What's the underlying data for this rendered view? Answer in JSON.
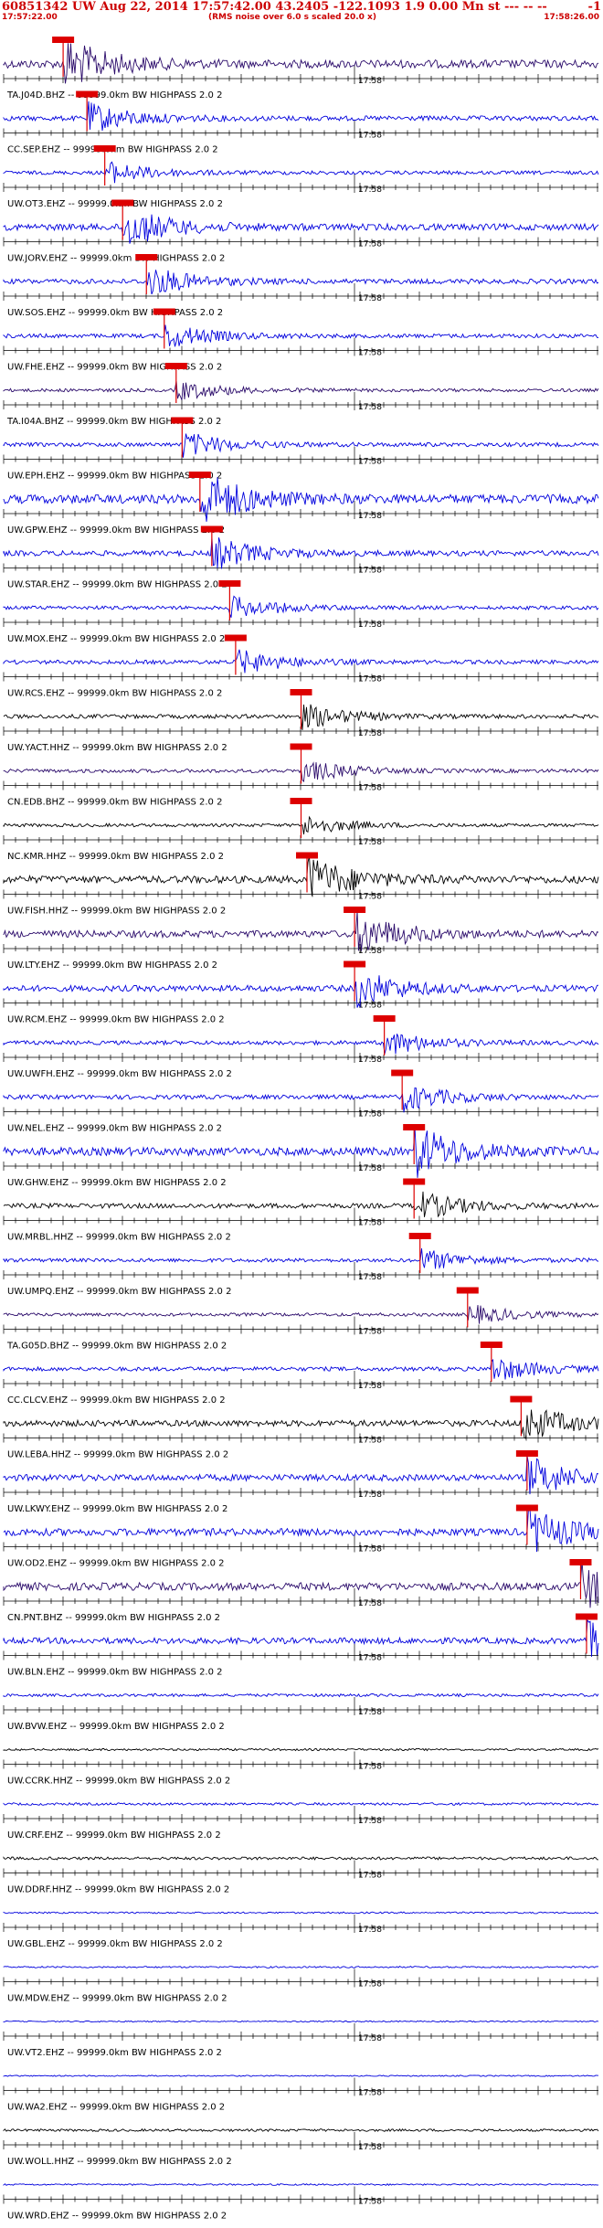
{
  "header": {
    "title": "60851342 UW Aug 22, 2014 17:57:42.00   43.2405 -122.1093  1.9 0.00 Mn st --- -- --",
    "title_right": "-1",
    "start_time": "17:57:22.00",
    "note": "(RMS noise over 6.0 s scaled 20.0 x)",
    "end_time": "17:58:26.00"
  },
  "colors": {
    "title": "#cc0000",
    "blue": "#0000dd",
    "black": "#000000",
    "purple": "#2a0a6a",
    "pick": "#dd0000"
  },
  "chart_data": {
    "type": "line",
    "title": "60851342 UW Aug 22, 2014 17:57:42.00",
    "x_range": [
      "17:57:22.00",
      "17:58:26.00"
    ],
    "minute_mark_label": "17:58",
    "traces": [
      {
        "label": "TA.J04D.BHZ -- 99999.0km BW  HIGHPASS  2.0  2",
        "color": "purple",
        "pick": 0.1,
        "amp": 2.0
      },
      {
        "label": "CC.SEP.EHZ -- 99999.0km BW  HIGHPASS  2.0  2",
        "color": "blue",
        "pick": 0.14,
        "amp": 1.2
      },
      {
        "label": "UW.OT3.EHZ -- 99999.0km BW  HIGHPASS  2.0  2",
        "color": "blue",
        "pick": 0.17,
        "amp": 0.9
      },
      {
        "label": "UW.JORV.EHZ -- 99999.0km BW  HIGHPASS  2.0  2",
        "color": "blue",
        "pick": 0.2,
        "amp": 1.6
      },
      {
        "label": "UW.SOS.EHZ -- 99999.0km BW  HIGHPASS  2.0  2",
        "color": "blue",
        "pick": 0.24,
        "amp": 1.2
      },
      {
        "label": "UW.FHE.EHZ -- 99999.0km BW  HIGHPASS  2.0  2",
        "color": "blue",
        "pick": 0.27,
        "amp": 1.0
      },
      {
        "label": "TA.I04A.BHZ -- 99999.0km BW  HIGHPASS  2.0  2",
        "color": "purple",
        "pick": 0.29,
        "amp": 0.8
      },
      {
        "label": "UW.EPH.EHZ -- 99999.0km BW  HIGHPASS  2.0  2",
        "color": "blue",
        "pick": 0.3,
        "amp": 1.0
      },
      {
        "label": "UW.GPW.EHZ -- 99999.0km BW  HIGHPASS  2.0  2",
        "color": "blue",
        "pick": 0.33,
        "amp": 2.2
      },
      {
        "label": "UW.STAR.EHZ -- 99999.0km BW  HIGHPASS  2.0  2",
        "color": "blue",
        "pick": 0.35,
        "amp": 1.3
      },
      {
        "label": "UW.MOX.EHZ -- 99999.0km BW  HIGHPASS  2.0  2",
        "color": "blue",
        "pick": 0.38,
        "amp": 0.9
      },
      {
        "label": "UW.RCS.EHZ -- 99999.0km BW  HIGHPASS  2.0  2",
        "color": "blue",
        "pick": 0.39,
        "amp": 1.0
      },
      {
        "label": "UW.YACT.HHZ -- 99999.0km BW  HIGHPASS  2.0  2",
        "color": "black",
        "pick": 0.5,
        "amp": 1.0
      },
      {
        "label": "CN.EDB.BHZ -- 99999.0km BW  HIGHPASS  2.0  2",
        "color": "purple",
        "pick": 0.5,
        "amp": 0.9
      },
      {
        "label": "NC.KMR.HHZ -- 99999.0km BW  HIGHPASS  2.0  2",
        "color": "black",
        "pick": 0.5,
        "amp": 0.8
      },
      {
        "label": "UW.FISH.HHZ -- 99999.0km BW  HIGHPASS  2.0  2",
        "color": "black",
        "pick": 0.51,
        "amp": 1.8
      },
      {
        "label": "UW.LTY.EHZ -- 99999.0km BW  HIGHPASS  2.0  2",
        "color": "purple",
        "pick": 0.59,
        "amp": 1.7
      },
      {
        "label": "UW.RCM.EHZ -- 99999.0km BW  HIGHPASS  2.0  2",
        "color": "blue",
        "pick": 0.59,
        "amp": 1.5
      },
      {
        "label": "UW.UWFH.EHZ -- 99999.0km BW  HIGHPASS  2.0  2",
        "color": "blue",
        "pick": 0.64,
        "amp": 1.0
      },
      {
        "label": "UW.NEL.EHZ -- 99999.0km BW  HIGHPASS  2.0  2",
        "color": "blue",
        "pick": 0.67,
        "amp": 1.1
      },
      {
        "label": "UW.GHW.EHZ -- 99999.0km BW  HIGHPASS  2.0  2",
        "color": "blue",
        "pick": 0.69,
        "amp": 2.0
      },
      {
        "label": "UW.MRBL.HHZ -- 99999.0km BW  HIGHPASS  2.0  2",
        "color": "black",
        "pick": 0.69,
        "amp": 1.2
      },
      {
        "label": "UW.UMPQ.EHZ -- 99999.0km BW  HIGHPASS  2.0  2",
        "color": "blue",
        "pick": 0.7,
        "amp": 0.9
      },
      {
        "label": "TA.G05D.BHZ -- 99999.0km BW  HIGHPASS  2.0  2",
        "color": "purple",
        "pick": 0.78,
        "amp": 0.8
      },
      {
        "label": "CC.CLCV.EHZ -- 99999.0km BW  HIGHPASS  2.0  2",
        "color": "blue",
        "pick": 0.82,
        "amp": 1.0
      },
      {
        "label": "UW.LEBA.HHZ -- 99999.0km BW  HIGHPASS  2.0  2",
        "color": "black",
        "pick": 0.87,
        "amp": 1.5
      },
      {
        "label": "UW.LKWY.EHZ -- 99999.0km BW  HIGHPASS  2.0  2",
        "color": "blue",
        "pick": 0.88,
        "amp": 1.6
      },
      {
        "label": "UW.OD2.EHZ -- 99999.0km BW  HIGHPASS  2.0  2",
        "color": "blue",
        "pick": 0.88,
        "amp": 1.8
      },
      {
        "label": "CN.PNT.BHZ -- 99999.0km BW  HIGHPASS  2.0  2",
        "color": "purple",
        "pick": 0.97,
        "amp": 1.9
      },
      {
        "label": "UW.BLN.EHZ -- 99999.0km BW  HIGHPASS  2.0  2",
        "color": "blue",
        "pick": 0.98,
        "amp": 1.5
      },
      {
        "label": "UW.BVW.EHZ -- 99999.0km BW  HIGHPASS  2.0  2",
        "color": "blue",
        "pick": null,
        "amp": 0.7
      },
      {
        "label": "UW.CCRK.HHZ -- 99999.0km BW  HIGHPASS  2.0  2",
        "color": "black",
        "pick": null,
        "amp": 0.5
      },
      {
        "label": "UW.CRF.EHZ -- 99999.0km BW  HIGHPASS  2.0  2",
        "color": "blue",
        "pick": null,
        "amp": 0.6
      },
      {
        "label": "UW.DDRF.HHZ -- 99999.0km BW  HIGHPASS  2.0  2",
        "color": "black",
        "pick": null,
        "amp": 0.7
      },
      {
        "label": "UW.GBL.EHZ -- 99999.0km BW  HIGHPASS  2.0  2",
        "color": "blue",
        "pick": null,
        "amp": 0.4
      },
      {
        "label": "UW.MDW.EHZ -- 99999.0km BW  HIGHPASS  2.0  2",
        "color": "blue",
        "pick": null,
        "amp": 0.4
      },
      {
        "label": "UW.VT2.EHZ -- 99999.0km BW  HIGHPASS  2.0  2",
        "color": "blue",
        "pick": null,
        "amp": 0.3
      },
      {
        "label": "UW.WA2.EHZ -- 99999.0km BW  HIGHPASS  2.0  2",
        "color": "blue",
        "pick": null,
        "amp": 0.3
      },
      {
        "label": "UW.WOLL.HHZ -- 99999.0km BW  HIGHPASS  2.0  2",
        "color": "black",
        "pick": null,
        "amp": 0.6
      },
      {
        "label": "UW.WRD.EHZ -- 99999.0km BW  HIGHPASS  2.0  2",
        "color": "blue",
        "pick": null,
        "amp": 0.4
      }
    ]
  }
}
